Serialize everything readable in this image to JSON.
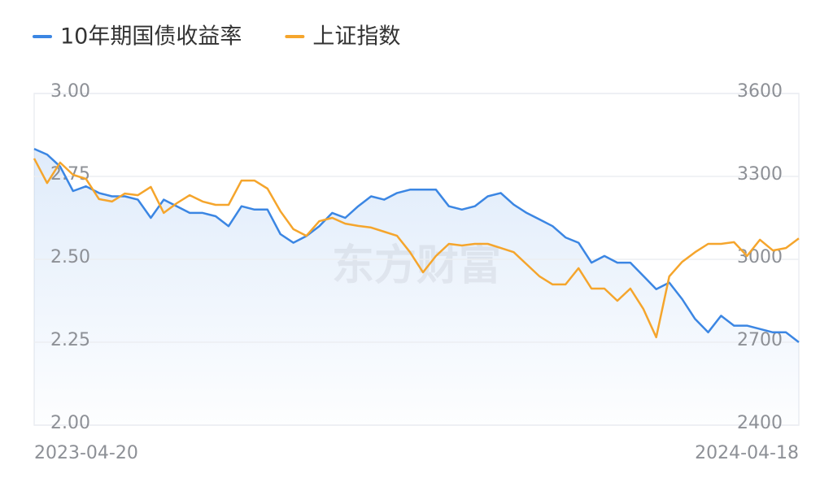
{
  "chart_data": {
    "type": "line",
    "watermark": "东方财富",
    "categories": [
      "2023-04-20",
      null,
      null,
      null,
      null,
      null,
      null,
      null,
      null,
      null,
      null,
      null,
      null,
      null,
      null,
      null,
      null,
      null,
      null,
      null,
      null,
      null,
      null,
      null,
      null,
      null,
      null,
      null,
      null,
      null,
      null,
      null,
      null,
      null,
      null,
      null,
      null,
      null,
      null,
      null,
      null,
      null,
      null,
      null,
      null,
      null,
      null,
      null,
      null,
      null,
      null,
      null,
      null,
      null,
      null,
      null,
      null,
      null,
      null,
      "2024-04-18"
    ],
    "ylim": [
      2,
      3
    ],
    "yticks": [
      {
        "value": 2,
        "label": "2.00"
      },
      {
        "value": 2.25,
        "label": "2.25"
      },
      {
        "value": 2.5,
        "label": "2.50"
      },
      {
        "value": 2.75,
        "label": "2.75"
      },
      {
        "value": 3,
        "label": "3.00"
      }
    ],
    "y2lim": [
      2400,
      3600
    ],
    "y2ticks": [
      2400,
      2700,
      3000,
      3300,
      3600
    ],
    "grid": true,
    "legend": "top-left",
    "series": [
      {
        "name": "10年期国债收益率",
        "color": "#3b86e3",
        "area": true,
        "values": [
          2.833,
          2.816,
          2.78,
          2.706,
          2.72,
          2.7,
          2.69,
          2.69,
          2.68,
          2.625,
          2.68,
          2.66,
          2.64,
          2.64,
          2.63,
          2.6,
          2.66,
          2.65,
          2.65,
          2.576,
          2.55,
          2.57,
          2.6,
          2.64,
          2.625,
          2.66,
          2.69,
          2.68,
          2.7,
          2.71,
          2.71,
          2.71,
          2.66,
          2.65,
          2.66,
          2.69,
          2.7,
          2.665,
          2.64,
          2.62,
          2.6,
          2.566,
          2.55,
          2.49,
          2.51,
          2.49,
          2.49,
          2.45,
          2.41,
          2.43,
          2.38,
          2.32,
          2.28,
          2.33,
          2.3,
          2.3,
          2.29,
          2.28,
          2.28,
          2.25
        ]
      },
      {
        "name": "上证指数",
        "color": "#f5a52c",
        "axis": "y2",
        "values": [
          3365,
          3276,
          3350,
          3306,
          3291,
          3218,
          3209,
          3238,
          3232,
          3262,
          3168,
          3203,
          3232,
          3209,
          3197,
          3197,
          3285,
          3285,
          3256,
          3174,
          3109,
          3085,
          3138,
          3150,
          3129,
          3121,
          3115,
          3100,
          3085,
          3026,
          2953,
          3012,
          3056,
          3050,
          3056,
          3056,
          3041,
          3026,
          2982,
          2938,
          2909,
          2909,
          2968,
          2894,
          2894,
          2850,
          2894,
          2821,
          2718,
          2938,
          2991,
          3026,
          3056,
          3056,
          3062,
          3012,
          3071,
          3032,
          3041,
          3076
        ]
      }
    ]
  }
}
